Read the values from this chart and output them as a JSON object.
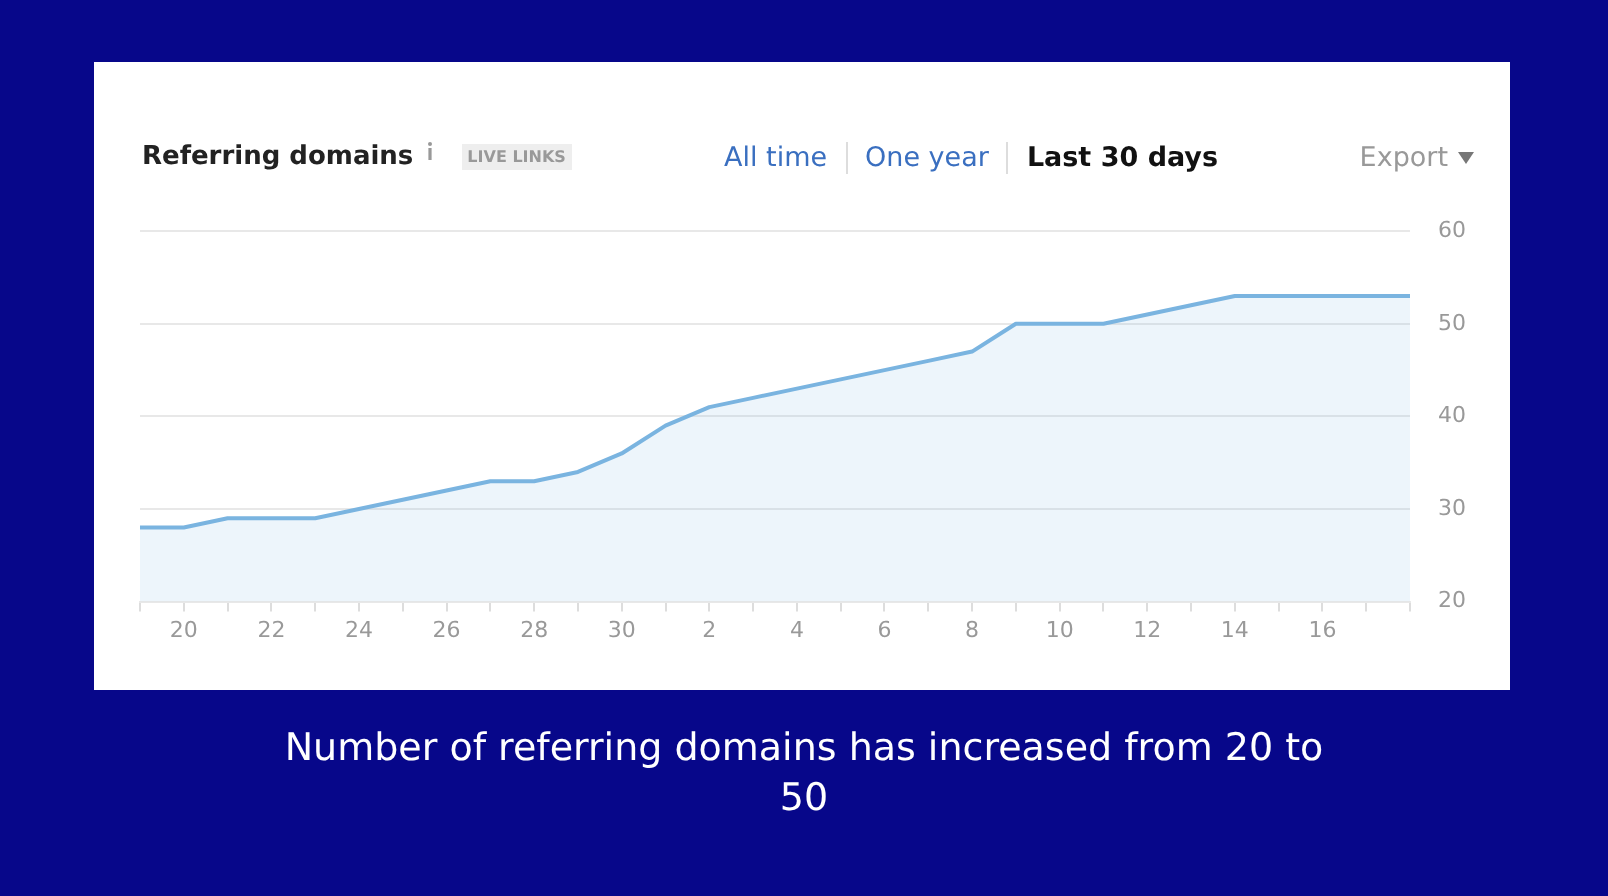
{
  "chart_data": {
    "type": "area",
    "title": "Referring domains",
    "annotations": [
      "LIVE LINKS",
      "All time",
      "One year",
      "Last 30 days",
      "Export",
      "Number of referring domains has increased from 20 to 50"
    ],
    "categories": [
      null,
      "20",
      null,
      "22",
      null,
      "24",
      null,
      "26",
      null,
      "28",
      null,
      "30",
      null,
      "2",
      null,
      "4",
      null,
      "6",
      null,
      "8",
      null,
      "10",
      null,
      "12",
      null,
      "14",
      null,
      "16",
      null,
      null
    ],
    "series": [
      {
        "color": "#7ab4e0",
        "values": [
          28,
          28,
          29,
          29,
          29,
          30,
          31,
          32,
          33,
          33,
          34,
          36,
          39,
          41,
          42,
          43,
          44,
          45,
          46,
          47,
          50,
          50,
          50,
          51,
          52,
          53,
          53,
          53,
          53,
          53
        ]
      }
    ],
    "ylim": [
      20,
      60
    ],
    "yticks": [
      20,
      30,
      40,
      50,
      60
    ],
    "grid": "y",
    "legend": false,
    "marker": "none"
  }
}
